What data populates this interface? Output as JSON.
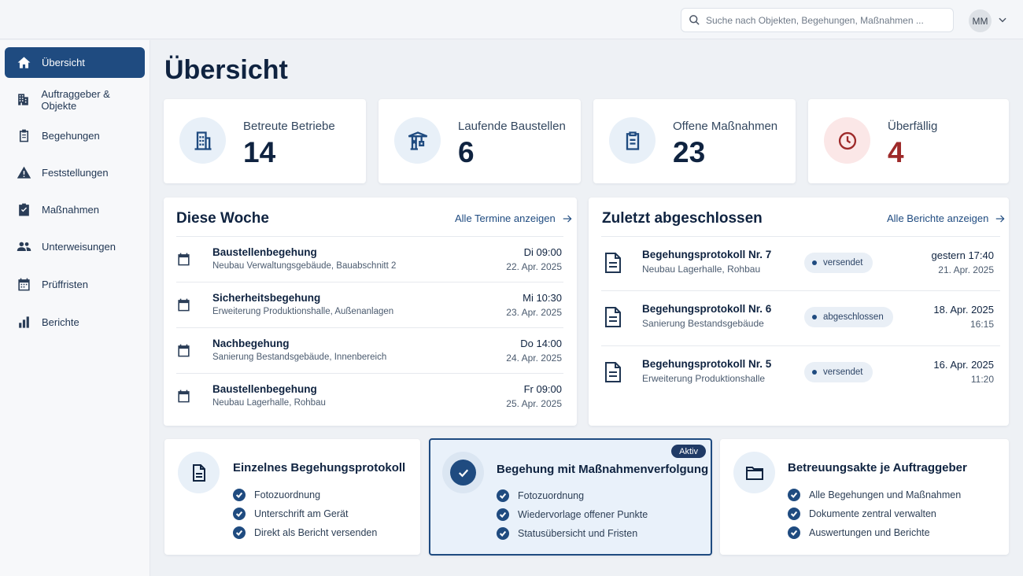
{
  "search": {
    "placeholder": "Suche nach Objekten, Begehungen, Maßnahmen ..."
  },
  "user": {
    "initials": "MM"
  },
  "sidebar": {
    "items": [
      {
        "label": "Übersicht",
        "icon": "home-icon"
      },
      {
        "label": "Auftraggeber & Objekte",
        "icon": "building-icon"
      },
      {
        "label": "Begehungen",
        "icon": "clipboard-icon"
      },
      {
        "label": "Feststellungen",
        "icon": "warning-icon"
      },
      {
        "label": "Maßnahmen",
        "icon": "checklist-icon"
      },
      {
        "label": "Unterweisungen",
        "icon": "people-icon"
      },
      {
        "label": "Prüffristen",
        "icon": "calendar-icon"
      },
      {
        "label": "Berichte",
        "icon": "bar-chart-icon"
      }
    ]
  },
  "page": {
    "title": "Übersicht"
  },
  "stats": [
    {
      "label": "Betreute Betriebe",
      "value": "14",
      "icon": "building-icon"
    },
    {
      "label": "Laufende Baustellen",
      "value": "6",
      "icon": "crane-icon"
    },
    {
      "label": "Offene Maßnahmen",
      "value": "23",
      "icon": "clipboard-icon"
    },
    {
      "label": "Überfällig",
      "value": "4",
      "icon": "clock-icon",
      "color": "#9e2a2a"
    }
  ],
  "week": {
    "title": "Diese Woche",
    "link": "Alle Termine anzeigen",
    "rows": [
      {
        "title": "Baustellenbegehung",
        "sub": "Neubau Verwaltungsgebäude, Bauabschnitt 2",
        "day": "Di 09:00",
        "date": "22. Apr. 2025"
      },
      {
        "title": "Sicherheitsbegehung",
        "sub": "Erweiterung Produktionshalle, Außenanlagen",
        "day": "Mi 10:30",
        "date": "23. Apr. 2025"
      },
      {
        "title": "Nachbegehung",
        "sub": "Sanierung Bestandsgebäude, Innenbereich",
        "day": "Do 14:00",
        "date": "24. Apr. 2025"
      },
      {
        "title": "Baustellenbegehung",
        "sub": "Neubau Lagerhalle, Rohbau",
        "day": "Fr 09:00",
        "date": "25. Apr. 2025"
      }
    ]
  },
  "reports": {
    "title": "Zuletzt abgeschlossen",
    "link": "Alle Berichte anzeigen",
    "rows": [
      {
        "title": "Begehungsprotokoll Nr. 7",
        "sub": "Neubau Lagerhalle, Rohbau",
        "status": "versendet",
        "time1": "gestern 17:40",
        "time2": "21. Apr. 2025"
      },
      {
        "title": "Begehungsprotokoll Nr. 6",
        "sub": "Sanierung Bestandsgebäude",
        "status": "abgeschlossen",
        "time1": "18. Apr. 2025",
        "time2": "16:15"
      },
      {
        "title": "Begehungsprotokoll Nr. 5",
        "sub": "Erweiterung Produktionshalle",
        "status": "versendet",
        "time1": "16. Apr. 2025",
        "time2": "11:20"
      }
    ]
  },
  "features": [
    {
      "title": "Einzelnes Begehungsprotokoll",
      "icon": "document-icon",
      "items": [
        "Fotozuordnung",
        "Unterschrift am Gerät",
        "Direkt als Bericht versenden"
      ]
    },
    {
      "title": "Begehung mit Maßnahmenverfolgung",
      "icon": "check-circle-icon",
      "badge": "Aktiv",
      "items": [
        "Fotozuordnung",
        "Wiedervorlage offener Punkte",
        "Statusübersicht und Fristen"
      ]
    },
    {
      "title": "Betreuungsakte je Auftraggeber",
      "icon": "folder-icon",
      "items": [
        "Alle Begehungen und Maßnahmen",
        "Dokumente zentral verwalten",
        "Auswertungen und Berichte"
      ]
    }
  ]
}
